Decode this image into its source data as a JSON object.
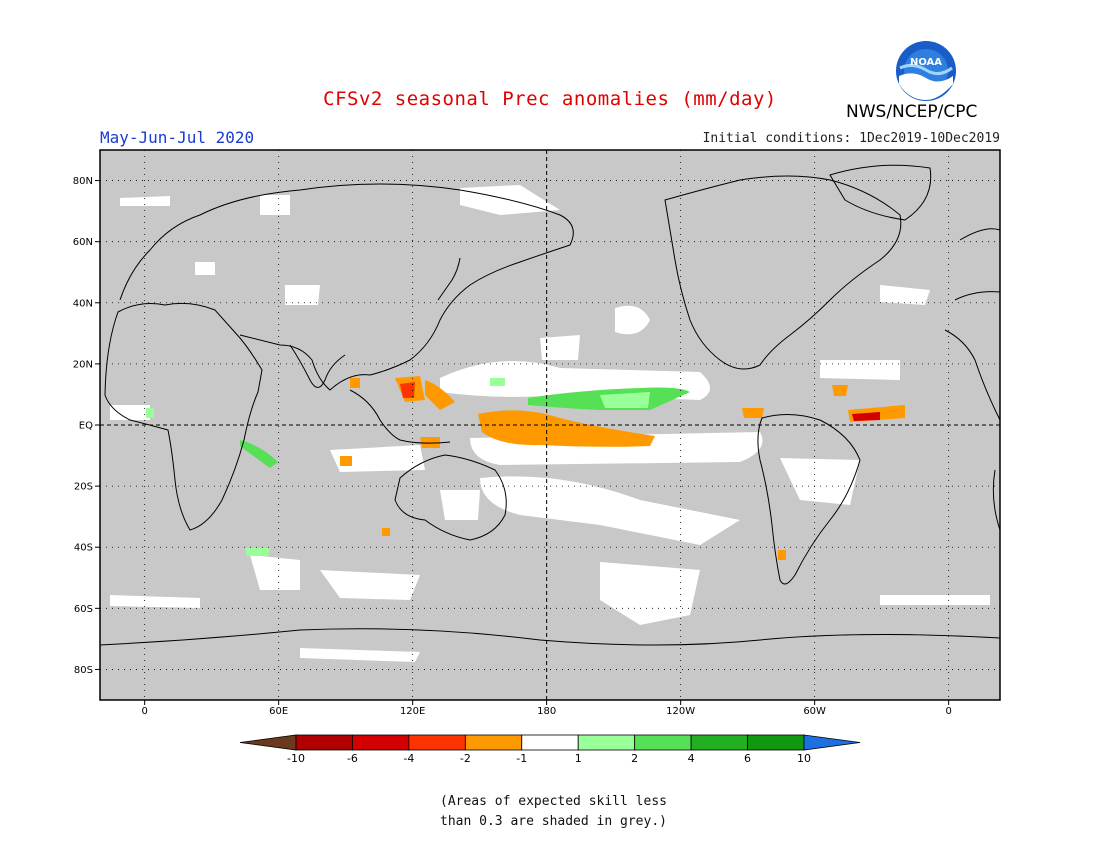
{
  "header": {
    "title": "CFSv2 seasonal Prec anomalies (mm/day)",
    "period": "May-Jun-Jul 2020",
    "initial_conditions": "Initial conditions: 1Dec2019-10Dec2019",
    "agency": "NWS/NCEP/CPC",
    "logo_text": "NOAA"
  },
  "map": {
    "lat_labels": [
      "80N",
      "60N",
      "40N",
      "20N",
      "EQ",
      "20S",
      "40S",
      "60S",
      "80S"
    ],
    "lon_labels": [
      "0",
      "60E",
      "120E",
      "180",
      "120W",
      "60W",
      "0"
    ],
    "mask_color": "#c8c8c8",
    "lon_range": [
      -20,
      383
    ],
    "lat_range": [
      -90,
      90
    ]
  },
  "colorbar": {
    "labels": [
      "-10",
      "-6",
      "-4",
      "-2",
      "-1",
      "1",
      "2",
      "4",
      "6",
      "10"
    ],
    "colors": [
      "#6b3a1e",
      "#b00000",
      "#d40000",
      "#ff3300",
      "#ff9900",
      "#ffffff",
      "#99ff99",
      "#55e055",
      "#22b022",
      "#109910",
      "#1e6fe0"
    ]
  },
  "footnote": {
    "line1": "(Areas of expected skill less",
    "line2": "than 0.3 are shaded in grey.)"
  }
}
